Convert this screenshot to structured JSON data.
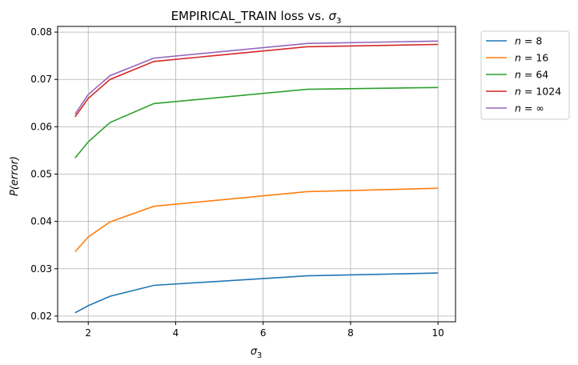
{
  "chart_data": {
    "type": "line",
    "title_prefix": "EMPIRICAL_TRAIN loss vs. ",
    "title_symbol": "σ",
    "title_subscript": "3",
    "xlabel_symbol": "σ",
    "xlabel_subscript": "3",
    "ylabel": "P(error)",
    "xlim": [
      1.3,
      10.4
    ],
    "ylim": [
      0.0188,
      0.0812
    ],
    "grid": true,
    "legend_position": "outside-right",
    "x_ticks": [
      2,
      4,
      6,
      8,
      10
    ],
    "x_tick_labels": [
      "2",
      "4",
      "6",
      "8",
      "10"
    ],
    "y_ticks": [
      0.02,
      0.03,
      0.04,
      0.05,
      0.06,
      0.07,
      0.08
    ],
    "y_tick_labels": [
      "0.02",
      "0.03",
      "0.04",
      "0.05",
      "0.06",
      "0.07",
      "0.08"
    ],
    "x": [
      1.7,
      2.0,
      2.5,
      3.5,
      7.0,
      10.0
    ],
    "series": [
      {
        "name_var": "n",
        "name_op": " = ",
        "name_val": "8",
        "color": "#1f77b4",
        "values": [
          0.0207,
          0.0222,
          0.0242,
          0.0265,
          0.0285,
          0.0291
        ]
      },
      {
        "name_var": "n",
        "name_op": " = ",
        "name_val": "16",
        "color": "#ff7f0e",
        "values": [
          0.0336,
          0.0367,
          0.0399,
          0.0432,
          0.0463,
          0.047
        ]
      },
      {
        "name_var": "n",
        "name_op": " = ",
        "name_val": "64",
        "color": "#2ca02c",
        "values": [
          0.0534,
          0.0568,
          0.0609,
          0.0649,
          0.0679,
          0.0683
        ]
      },
      {
        "name_var": "n",
        "name_op": " = ",
        "name_val": "1024",
        "color": "#d62728",
        "values": [
          0.0621,
          0.066,
          0.07,
          0.0738,
          0.0769,
          0.0774
        ]
      },
      {
        "name_var": "n",
        "name_op": " = ",
        "name_val": "∞",
        "color": "#9467bd",
        "values": [
          0.0627,
          0.0668,
          0.0708,
          0.0745,
          0.0776,
          0.0781
        ]
      }
    ]
  }
}
